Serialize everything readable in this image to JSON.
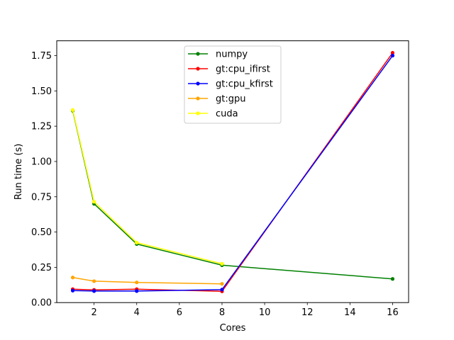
{
  "chart_data": {
    "type": "line",
    "xlabel": "Cores",
    "ylabel": "Run time (s)",
    "xlim": [
      0.25,
      16.75
    ],
    "ylim": [
      0,
      1.855
    ],
    "xticks": [
      2,
      4,
      6,
      8,
      10,
      12,
      14,
      16
    ],
    "xtick_labels": [
      "2",
      "4",
      "6",
      "8",
      "10",
      "12",
      "14",
      "16"
    ],
    "yticks": [
      0,
      0.25,
      0.5,
      0.75,
      1.0,
      1.25,
      1.5,
      1.75
    ],
    "ytick_labels": [
      "0.00",
      "0.25",
      "0.50",
      "0.75",
      "1.00",
      "1.25",
      "1.50",
      "1.75"
    ],
    "legend_position": "top-center",
    "grid": false,
    "series": [
      {
        "name": "numpy",
        "color": "#008000",
        "x": [
          1,
          2,
          4,
          8,
          16
        ],
        "y": [
          1.36,
          0.7,
          0.415,
          0.265,
          0.168
        ]
      },
      {
        "name": "gt:cpu_ifirst",
        "color": "#ff0000",
        "x": [
          1,
          2,
          4,
          8,
          16
        ],
        "y": [
          0.095,
          0.09,
          0.095,
          0.08,
          1.77
        ]
      },
      {
        "name": "gt:cpu_kfirst",
        "color": "#0000ff",
        "x": [
          1,
          2,
          4,
          8,
          16
        ],
        "y": [
          0.085,
          0.082,
          0.082,
          0.092,
          1.75
        ]
      },
      {
        "name": "gt:gpu",
        "color": "#ffa500",
        "x": [
          1,
          2,
          4,
          8
        ],
        "y": [
          0.178,
          0.152,
          0.143,
          0.133
        ]
      },
      {
        "name": "cuda",
        "color": "#ffff00",
        "x": [
          1,
          2,
          4,
          8
        ],
        "y": [
          1.365,
          0.715,
          0.425,
          0.275
        ]
      }
    ]
  }
}
